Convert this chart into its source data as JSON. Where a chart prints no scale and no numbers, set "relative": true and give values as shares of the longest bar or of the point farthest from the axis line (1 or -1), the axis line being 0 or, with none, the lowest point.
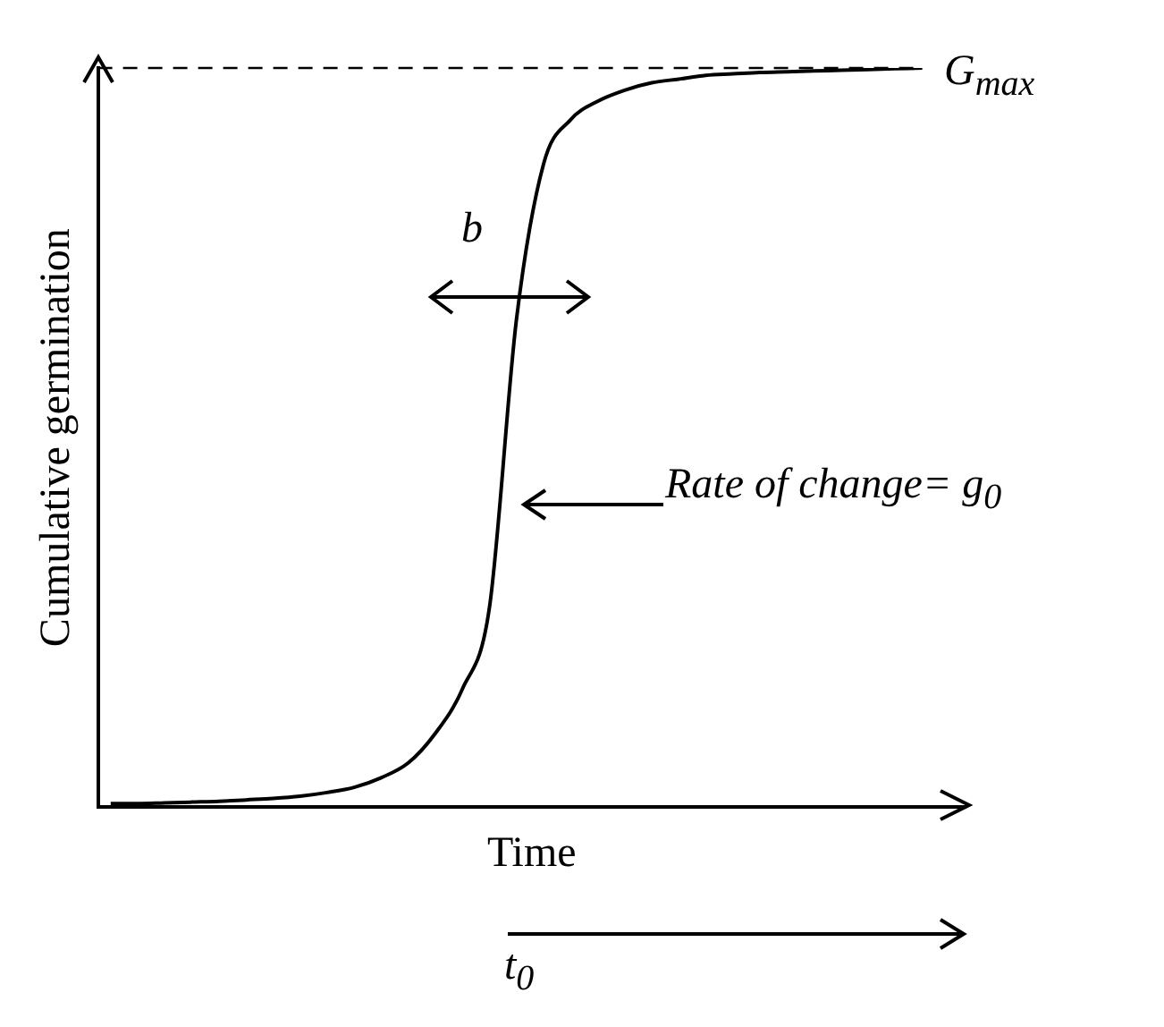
{
  "chart_data": {
    "type": "line",
    "relative": true,
    "categories": [
      null,
      null,
      null,
      null,
      null,
      null,
      null,
      null,
      null,
      null,
      null,
      null,
      null,
      null,
      null,
      null,
      null,
      null,
      null,
      null,
      null,
      null,
      null,
      null,
      null,
      null,
      null,
      null,
      null,
      null,
      null
    ],
    "values": [
      0.005,
      0.005,
      0.006,
      0.007,
      0.008,
      0.01,
      0.012,
      0.015,
      0.02,
      0.027,
      0.04,
      0.06,
      0.1,
      0.16,
      0.27,
      0.66,
      0.87,
      0.93,
      0.955,
      0.97,
      0.98,
      0.985,
      0.99,
      0.992,
      0.994,
      0.995,
      0.996,
      0.997,
      0.998,
      0.999,
      1
    ],
    "color": "#000000",
    "xlabel": "Time",
    "ylabel": "Cumulative germination",
    "ref_lines": [
      {
        "axis": "y",
        "value": 1,
        "label": "G$_{max}$",
        "line_style": "dashed",
        "color": "#000000"
      }
    ],
    "annotations": [
      "b",
      "Rate of change= g$_{0}$",
      "t$_{0}$"
    ],
    "marker": "none",
    "legend": false
  }
}
